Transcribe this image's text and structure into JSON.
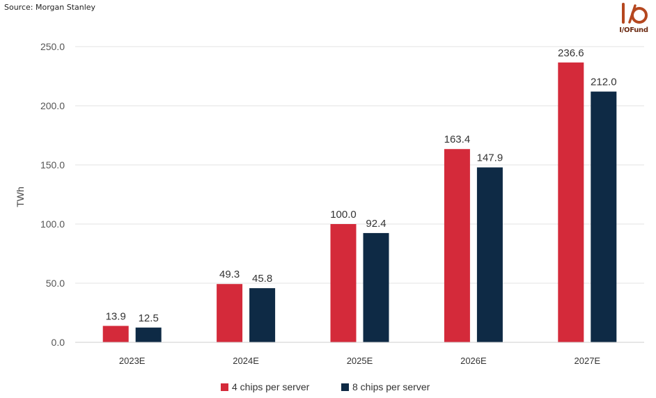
{
  "source": "Source: Morgan Stanley",
  "logo": {
    "text": "I/OFund",
    "icon": "io-logo-icon",
    "color": "#b5471f"
  },
  "chart_data": {
    "type": "bar",
    "categories": [
      "2023E",
      "2024E",
      "2025E",
      "2026E",
      "2027E"
    ],
    "series": [
      {
        "name": "4 chips per server",
        "color": "#d42a3a",
        "values": [
          13.9,
          49.3,
          100.0,
          163.4,
          236.6
        ],
        "labels": [
          "13.9",
          "49.3",
          "100.0",
          "163.4",
          "236.6"
        ]
      },
      {
        "name": "8 chips per server",
        "color": "#0e2a45",
        "values": [
          12.5,
          45.8,
          92.4,
          147.9,
          212.0
        ],
        "labels": [
          "12.5",
          "45.8",
          "92.4",
          "147.9",
          "212.0"
        ]
      }
    ],
    "ylabel": "TWh",
    "xlabel": "",
    "ylim": [
      0,
      250
    ],
    "yticks": [
      "0.0",
      "50.0",
      "100.0",
      "150.0",
      "200.0",
      "250.0"
    ],
    "grid": true,
    "legend": "bottom-center"
  }
}
